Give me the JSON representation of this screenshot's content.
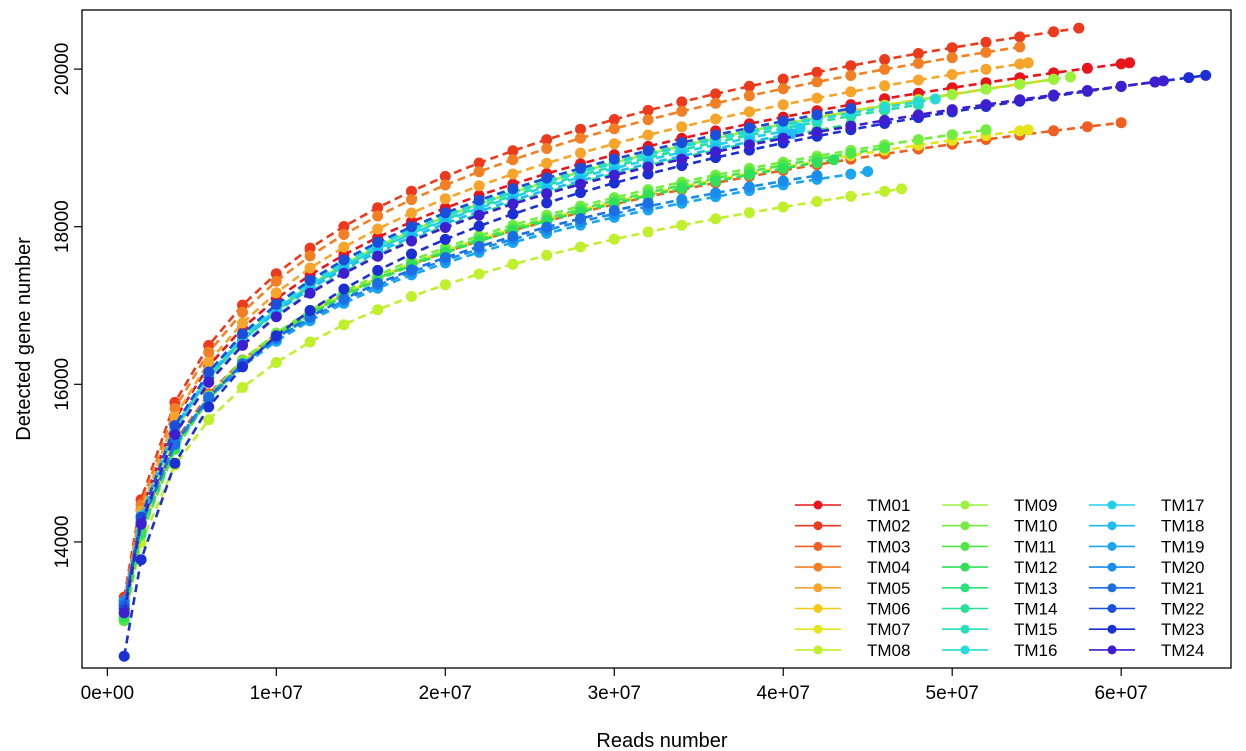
{
  "chart_data": {
    "type": "line",
    "title": "",
    "xlabel": "Reads number",
    "ylabel": "Detected gene number",
    "xlim": [
      -1500000,
      66500000
    ],
    "ylim": [
      12400,
      20750
    ],
    "xticks": [
      0,
      10000000,
      20000000,
      30000000,
      40000000,
      50000000,
      60000000
    ],
    "xtick_labels": [
      "0e+00",
      "1e+07",
      "2e+07",
      "3e+07",
      "4e+07",
      "5e+07",
      "6e+07"
    ],
    "yticks": [
      14000,
      16000,
      18000,
      20000
    ],
    "ytick_labels": [
      "14000",
      "16000",
      "18000",
      "20000"
    ],
    "grid": false,
    "line_style": "dashed",
    "legend_position": "bottom-right",
    "legend_columns": 3,
    "series": [
      {
        "name": "TM01",
        "color": "#e8161b",
        "max_reads": 60500000,
        "final_genes": 20080,
        "initial_genes": 13250
      },
      {
        "name": "TM02",
        "color": "#ec3a1d",
        "max_reads": 57500000,
        "final_genes": 20520,
        "initial_genes": 13300
      },
      {
        "name": "TM03",
        "color": "#ef5f21",
        "max_reads": 60000000,
        "final_genes": 19320,
        "initial_genes": 13200
      },
      {
        "name": "TM04",
        "color": "#f37f25",
        "max_reads": 54000000,
        "final_genes": 20280,
        "initial_genes": 13250
      },
      {
        "name": "TM05",
        "color": "#f7a52a",
        "max_reads": 54500000,
        "final_genes": 20080,
        "initial_genes": 13200
      },
      {
        "name": "TM06",
        "color": "#f5c917",
        "max_reads": 56000000,
        "final_genes": 19870,
        "initial_genes": 13150
      },
      {
        "name": "TM07",
        "color": "#e6e51a",
        "max_reads": 54500000,
        "final_genes": 19230,
        "initial_genes": 13100
      },
      {
        "name": "TM08",
        "color": "#bff02c",
        "max_reads": 47000000,
        "final_genes": 18480,
        "initial_genes": 13000
      },
      {
        "name": "TM09",
        "color": "#9af23a",
        "max_reads": 57000000,
        "final_genes": 19900,
        "initial_genes": 13050
      },
      {
        "name": "TM10",
        "color": "#73ee3f",
        "max_reads": 52000000,
        "final_genes": 19230,
        "initial_genes": 13050
      },
      {
        "name": "TM11",
        "color": "#4de846",
        "max_reads": 46000000,
        "final_genes": 19000,
        "initial_genes": 13000
      },
      {
        "name": "TM12",
        "color": "#30e059",
        "max_reads": 43000000,
        "final_genes": 18850,
        "initial_genes": 13050
      },
      {
        "name": "TM13",
        "color": "#29e07a",
        "max_reads": 44000000,
        "final_genes": 19300,
        "initial_genes": 13100
      },
      {
        "name": "TM14",
        "color": "#27e09a",
        "max_reads": 48000000,
        "final_genes": 19550,
        "initial_genes": 13100
      },
      {
        "name": "TM15",
        "color": "#26dfbc",
        "max_reads": 42000000,
        "final_genes": 19380,
        "initial_genes": 13150
      },
      {
        "name": "TM16",
        "color": "#25dbd8",
        "max_reads": 49000000,
        "final_genes": 19620,
        "initial_genes": 13150
      },
      {
        "name": "TM17",
        "color": "#20d0ee",
        "max_reads": 41000000,
        "final_genes": 19250,
        "initial_genes": 13200
      },
      {
        "name": "TM18",
        "color": "#1fbcf0",
        "max_reads": 40500000,
        "final_genes": 19180,
        "initial_genes": 13200
      },
      {
        "name": "TM19",
        "color": "#1ca6f0",
        "max_reads": 45000000,
        "final_genes": 18700,
        "initial_genes": 13250
      },
      {
        "name": "TM20",
        "color": "#1b8cec",
        "max_reads": 42000000,
        "final_genes": 18650,
        "initial_genes": 13250
      },
      {
        "name": "TM21",
        "color": "#1c6ee5",
        "max_reads": 32000000,
        "final_genes": 18300,
        "initial_genes": 13200
      },
      {
        "name": "TM22",
        "color": "#1b4fdb",
        "max_reads": 44000000,
        "final_genes": 19500,
        "initial_genes": 13150
      },
      {
        "name": "TM23",
        "color": "#1c2fd4",
        "max_reads": 65000000,
        "final_genes": 19920,
        "initial_genes": 12550
      },
      {
        "name": "TM24",
        "color": "#3d1fd0",
        "max_reads": 62500000,
        "final_genes": 19850,
        "initial_genes": 13100
      }
    ]
  }
}
